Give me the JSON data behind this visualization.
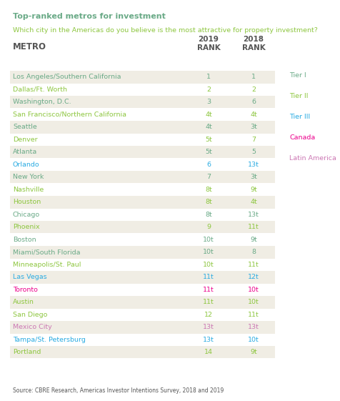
{
  "title1": "Top-ranked metros for investment",
  "title2": "Which city in the Americas do you believe is the most attractive for property investment?",
  "col_header_metro": "METRO",
  "col_header_2019": "2019\nRANK",
  "col_header_2018": "2018\nRANK",
  "rows": [
    {
      "metro": "Los Angeles/Southern California",
      "rank2019": "1",
      "rank2018": "1",
      "color": "#6aaa87",
      "shade": true
    },
    {
      "metro": "Dallas/Ft. Worth",
      "rank2019": "2",
      "rank2018": "2",
      "color": "#8dc63f",
      "shade": false
    },
    {
      "metro": "Washington, D.C.",
      "rank2019": "3",
      "rank2018": "6",
      "color": "#6aaa87",
      "shade": true
    },
    {
      "metro": "San Francisco/Northern California",
      "rank2019": "4t",
      "rank2018": "4t",
      "color": "#8dc63f",
      "shade": false
    },
    {
      "metro": "Seattle",
      "rank2019": "4t",
      "rank2018": "3t",
      "color": "#6aaa87",
      "shade": true
    },
    {
      "metro": "Denver",
      "rank2019": "5t",
      "rank2018": "7",
      "color": "#8dc63f",
      "shade": false
    },
    {
      "metro": "Atlanta",
      "rank2019": "5t",
      "rank2018": "5",
      "color": "#6aaa87",
      "shade": true
    },
    {
      "metro": "Orlando",
      "rank2019": "6",
      "rank2018": "13t",
      "color": "#29abe2",
      "shade": false
    },
    {
      "metro": "New York",
      "rank2019": "7",
      "rank2018": "3t",
      "color": "#6aaa87",
      "shade": true
    },
    {
      "metro": "Nashville",
      "rank2019": "8t",
      "rank2018": "9t",
      "color": "#8dc63f",
      "shade": false
    },
    {
      "metro": "Houston",
      "rank2019": "8t",
      "rank2018": "4t",
      "color": "#8dc63f",
      "shade": true
    },
    {
      "metro": "Chicago",
      "rank2019": "8t",
      "rank2018": "13t",
      "color": "#6aaa87",
      "shade": false
    },
    {
      "metro": "Phoenix",
      "rank2019": "9",
      "rank2018": "11t",
      "color": "#8dc63f",
      "shade": true
    },
    {
      "metro": "Boston",
      "rank2019": "10t",
      "rank2018": "9t",
      "color": "#6aaa87",
      "shade": false
    },
    {
      "metro": "Miami/South Florida",
      "rank2019": "10t",
      "rank2018": "8",
      "color": "#6aaa87",
      "shade": true
    },
    {
      "metro": "Minneapolis/St. Paul",
      "rank2019": "10t",
      "rank2018": "11t",
      "color": "#8dc63f",
      "shade": false
    },
    {
      "metro": "Las Vegas",
      "rank2019": "11t",
      "rank2018": "12t",
      "color": "#29abe2",
      "shade": true
    },
    {
      "metro": "Toronto",
      "rank2019": "11t",
      "rank2018": "10t",
      "color": "#ec008c",
      "shade": false
    },
    {
      "metro": "Austin",
      "rank2019": "11t",
      "rank2018": "10t",
      "color": "#8dc63f",
      "shade": true
    },
    {
      "metro": "San Diego",
      "rank2019": "12",
      "rank2018": "11t",
      "color": "#8dc63f",
      "shade": false
    },
    {
      "metro": "Mexico City",
      "rank2019": "13t",
      "rank2018": "13t",
      "color": "#cc78b4",
      "shade": true
    },
    {
      "metro": "Tampa/St. Petersburg",
      "rank2019": "13t",
      "rank2018": "10t",
      "color": "#29abe2",
      "shade": false
    },
    {
      "metro": "Portland",
      "rank2019": "14",
      "rank2018": "9t",
      "color": "#8dc63f",
      "shade": true
    }
  ],
  "legend": [
    {
      "label": "Tier I",
      "color": "#6aaa87"
    },
    {
      "label": "Tier II",
      "color": "#8dc63f"
    },
    {
      "label": "Tier III",
      "color": "#29abe2"
    },
    {
      "label": "Canada",
      "color": "#ec008c"
    },
    {
      "label": "Latin America",
      "color": "#cc78b4"
    }
  ],
  "source": "Source: CBRE Research, Americas Investor Intentions Survey, 2018 and 2019",
  "title1_color": "#6aaa87",
  "title2_color": "#8dc63f",
  "header_color": "#555555",
  "shade_color": "#f0ede4",
  "bg_color": "#ffffff",
  "fig_width": 4.76,
  "fig_height": 5.61,
  "dpi": 100
}
